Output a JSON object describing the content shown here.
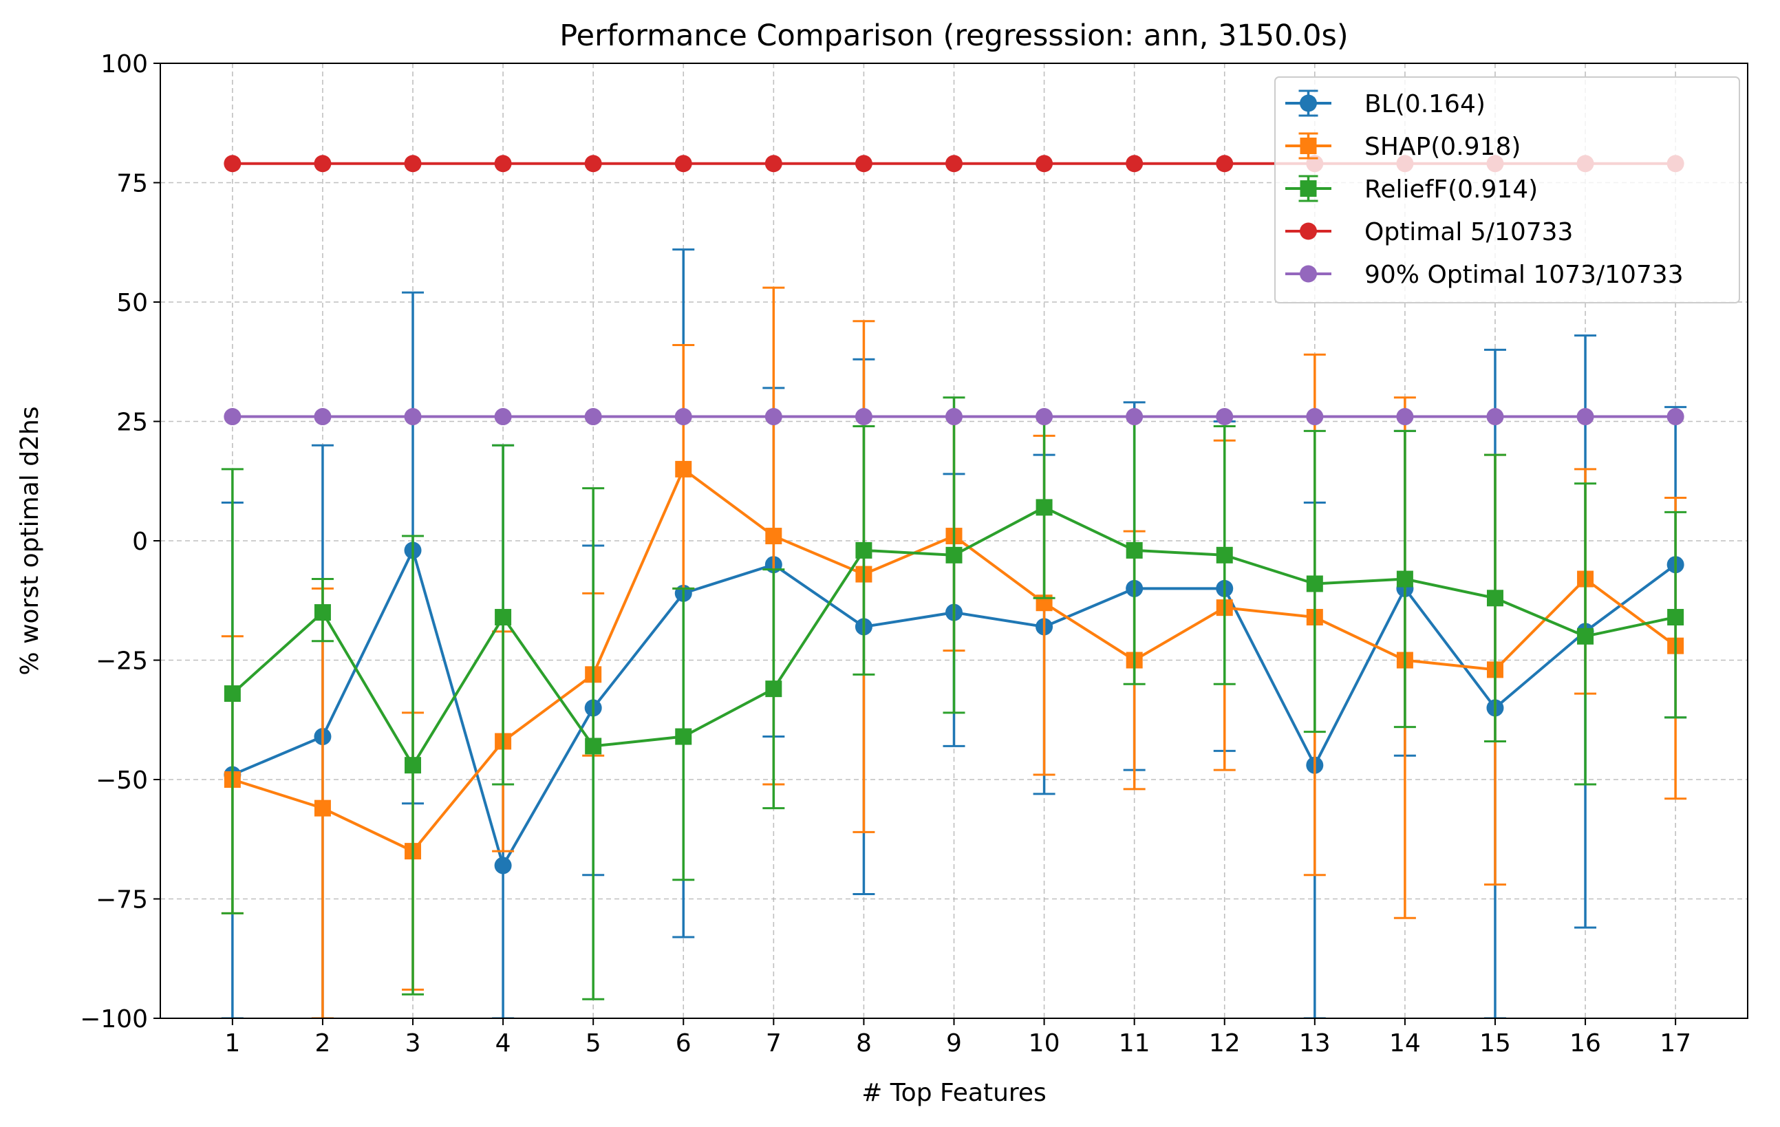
{
  "chart_data": {
    "type": "line",
    "title": "Performance Comparison (regresssion: ann, 3150.0s)",
    "xlabel": "# Top Features",
    "ylabel": "% worst optimal d2hs",
    "x": [
      1,
      2,
      3,
      4,
      5,
      6,
      7,
      8,
      9,
      10,
      11,
      12,
      13,
      14,
      15,
      16,
      17
    ],
    "xlim": [
      0.2,
      17.8
    ],
    "ylim": [
      -100,
      100
    ],
    "yticks": [
      -100,
      -75,
      -50,
      -25,
      0,
      25,
      50,
      75,
      100
    ],
    "ytick_labels": [
      "−100",
      "−75",
      "−50",
      "−25",
      "0",
      "25",
      "50",
      "75",
      "100"
    ],
    "grid": true,
    "legend_position": "top-right",
    "series": [
      {
        "name": "BL(0.164)",
        "color": "#1f77b4",
        "marker": "circle",
        "values": [
          -49,
          -41,
          -2,
          -68,
          -35,
          -11,
          -5,
          -18,
          -15,
          -18,
          -10,
          -10,
          -47,
          -10,
          -35,
          -19,
          -5
        ],
        "err_low": [
          -100,
          -100,
          -55,
          -100,
          -70,
          -83,
          -41,
          -74,
          -43,
          -53,
          -48,
          -44,
          -100,
          -45,
          -100,
          -81,
          -37
        ],
        "err_high": [
          8,
          20,
          52,
          20,
          -1,
          61,
          32,
          38,
          14,
          18,
          29,
          25,
          8,
          23,
          40,
          43,
          28
        ]
      },
      {
        "name": "SHAP(0.918)",
        "color": "#ff7f0e",
        "marker": "square",
        "values": [
          -50,
          -56,
          -65,
          -42,
          -28,
          15,
          1,
          -7,
          1,
          -13,
          -25,
          -14,
          -16,
          -25,
          -27,
          -8,
          -22
        ],
        "err_low": [
          -78,
          -100,
          -94,
          -65,
          -45,
          -10,
          -51,
          -61,
          -23,
          -49,
          -52,
          -48,
          -70,
          -79,
          -72,
          -32,
          -54
        ],
        "err_high": [
          -20,
          -10,
          -36,
          -19,
          -11,
          41,
          53,
          46,
          26,
          22,
          2,
          21,
          39,
          30,
          18,
          15,
          9
        ]
      },
      {
        "name": "ReliefF(0.914)",
        "color": "#2ca02c",
        "marker": "square",
        "values": [
          -32,
          -15,
          -47,
          -16,
          -43,
          -41,
          -31,
          -2,
          -3,
          7,
          -2,
          -3,
          -9,
          -8,
          -12,
          -20,
          -16
        ],
        "err_low": [
          -78,
          -21,
          -95,
          -51,
          -96,
          -71,
          -56,
          -28,
          -36,
          -12,
          -30,
          -30,
          -40,
          -39,
          -42,
          -51,
          -37
        ],
        "err_high": [
          15,
          -8,
          1,
          20,
          11,
          -10,
          -6,
          24,
          30,
          26,
          26,
          24,
          23,
          23,
          18,
          12,
          6
        ]
      },
      {
        "name": "Optimal 5/10733",
        "color": "#d62728",
        "marker": "circle",
        "values": [
          79,
          79,
          79,
          79,
          79,
          79,
          79,
          79,
          79,
          79,
          79,
          79,
          79,
          79,
          79,
          79,
          79
        ]
      },
      {
        "name": "90% Optimal 1073/10733",
        "color": "#9467bd",
        "marker": "circle",
        "values": [
          26,
          26,
          26,
          26,
          26,
          26,
          26,
          26,
          26,
          26,
          26,
          26,
          26,
          26,
          26,
          26,
          26
        ]
      }
    ]
  }
}
